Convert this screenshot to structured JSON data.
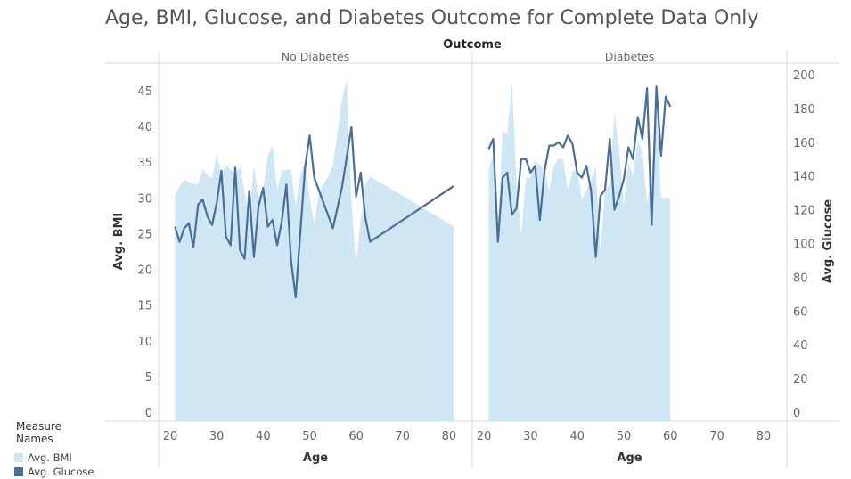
{
  "chart_data": {
    "type": "area+line (dual axis)",
    "title": "Age, BMI, Glucose, and Diabetes Outcome for Complete Data Only",
    "column_header": "Outcome",
    "panels": [
      {
        "name": "No Diabetes",
        "bmi_x": [
          21,
          22,
          23,
          24,
          25,
          26,
          27,
          28,
          29,
          30,
          31,
          32,
          33,
          34,
          35,
          36,
          37,
          38,
          39,
          40,
          41,
          42,
          43,
          44,
          45,
          46,
          47,
          48,
          49,
          50,
          51,
          52,
          53,
          54,
          55,
          56,
          57,
          58,
          59,
          60,
          61,
          62,
          63,
          81
        ],
        "bmi_y": [
          30.4,
          31.6,
          32.5,
          32.3,
          32.0,
          31.9,
          34.0,
          33.2,
          32.8,
          36.1,
          33.5,
          34.5,
          34.0,
          33.3,
          34.3,
          30.7,
          27.5,
          34.5,
          30.2,
          31.1,
          36.0,
          37.3,
          31.2,
          33.8,
          33.9,
          34.0,
          28.9,
          33.3,
          35.1,
          30.0,
          26.4,
          30.7,
          32.0,
          33.0,
          34.6,
          39.2,
          44.0,
          46.5,
          29.3,
          20.8,
          27.0,
          32.0,
          33.0,
          26.0
        ],
        "glucose_x": [
          21,
          22,
          23,
          24,
          25,
          26,
          27,
          28,
          29,
          30,
          31,
          32,
          33,
          34,
          35,
          36,
          37,
          38,
          39,
          40,
          41,
          42,
          43,
          44,
          45,
          46,
          47,
          48,
          49,
          50,
          51,
          55,
          57,
          59,
          60,
          61,
          62,
          63,
          81
        ],
        "glucose_y": [
          110,
          101,
          109,
          112,
          98,
          123,
          126,
          116,
          111,
          124,
          143,
          104,
          99,
          145,
          96,
          91,
          131,
          92,
          122,
          133,
          110,
          114,
          99,
          113,
          135,
          90,
          68,
          107,
          145,
          164,
          139,
          109,
          134,
          169,
          128,
          142,
          115,
          101,
          134
        ]
      },
      {
        "name": "Diabetes",
        "bmi_x": [
          21,
          22,
          23,
          24,
          25,
          26,
          27,
          28,
          29,
          30,
          31,
          32,
          33,
          34,
          35,
          36,
          37,
          38,
          39,
          40,
          41,
          42,
          43,
          44,
          45,
          46,
          47,
          48,
          49,
          50,
          51,
          52,
          53,
          54,
          55,
          56,
          57,
          58,
          59,
          60
        ],
        "bmi_y": [
          34.0,
          36.0,
          26.0,
          39.4,
          39.0,
          46.3,
          31.8,
          24.8,
          32.9,
          32.7,
          35.2,
          34.6,
          33.8,
          31.0,
          34.5,
          35.5,
          35.4,
          31.0,
          33.6,
          34.2,
          29.8,
          31.0,
          32.5,
          34.4,
          22.4,
          31.0,
          31.9,
          41.8,
          36.9,
          28.8,
          35.0,
          33.1,
          38.0,
          36.3,
          29.2,
          32.9,
          44.3,
          30.0,
          30.0,
          30.0
        ],
        "glucose_x": [
          21,
          22,
          23,
          24,
          25,
          26,
          27,
          28,
          29,
          30,
          31,
          32,
          33,
          34,
          35,
          36,
          37,
          38,
          39,
          40,
          41,
          42,
          43,
          44,
          45,
          46,
          47,
          48,
          49,
          50,
          51,
          52,
          53,
          54,
          55,
          56,
          57,
          58,
          59,
          60
        ],
        "glucose_y": [
          156,
          162,
          101,
          139,
          142,
          117,
          121,
          150,
          150,
          142,
          146,
          114,
          143,
          158,
          158,
          160,
          157,
          164,
          159,
          142,
          139,
          146,
          131,
          92,
          128,
          132,
          162,
          120,
          128,
          138,
          157,
          150,
          175,
          162,
          192,
          111,
          193,
          152,
          187,
          181
        ]
      }
    ],
    "x_label": "Age",
    "x_ticks": [
      20,
      30,
      40,
      50,
      60,
      70,
      80
    ],
    "x_range": [
      17.5,
      85
    ],
    "y_left_label": "Avg. BMI",
    "y_left_ticks": [
      0,
      5,
      10,
      15,
      20,
      25,
      30,
      35,
      40,
      45
    ],
    "y_left_range": [
      0,
      45
    ],
    "y_right_label": "Avg. Glucose",
    "y_right_ticks": [
      0,
      20,
      40,
      60,
      80,
      100,
      120,
      140,
      160,
      180,
      200
    ],
    "y_right_range": [
      0,
      200
    ],
    "legend": {
      "title": "Measure Names",
      "items": [
        {
          "label": "Avg. BMI",
          "color": "#cfe6f5"
        },
        {
          "label": "Avg. Glucose",
          "color": "#4a6f96"
        }
      ]
    },
    "colors": {
      "bmi_fill": "#cfe6f5",
      "glucose_line": "#4a6f96"
    }
  }
}
